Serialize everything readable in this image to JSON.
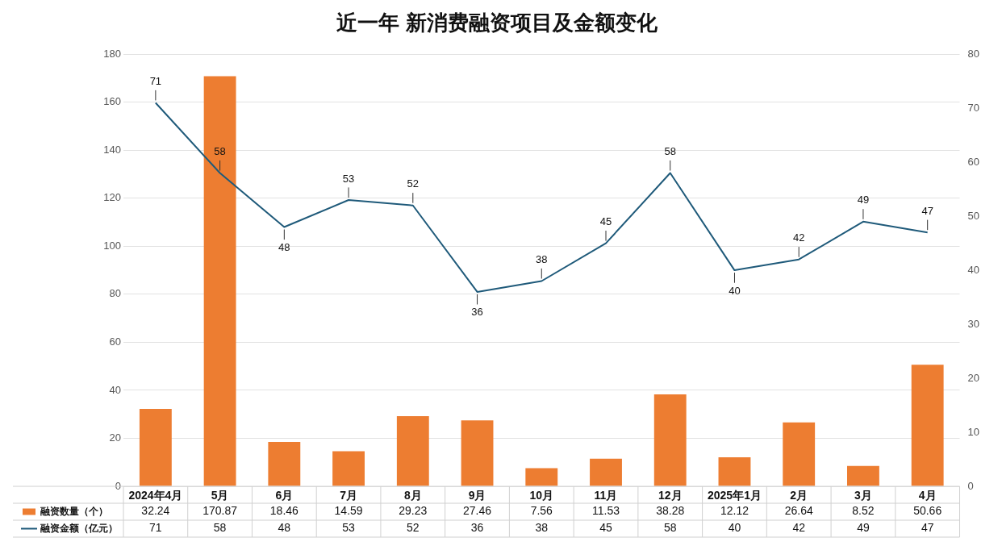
{
  "chart_data": {
    "type": "bar",
    "title": "近一年 新消费融资项目及金额变化",
    "categories": [
      "2024年4月",
      "5月",
      "6月",
      "7月",
      "8月",
      "9月",
      "10月",
      "11月",
      "12月",
      "2025年1月",
      "2月",
      "3月",
      "4月"
    ],
    "series": [
      {
        "name": "融资数量（个）",
        "type": "bar",
        "color": "#ed7d31",
        "values": [
          32.24,
          170.87,
          18.46,
          14.59,
          29.23,
          27.46,
          7.56,
          11.53,
          38.28,
          12.12,
          26.64,
          8.52,
          50.66
        ]
      },
      {
        "name": "融资金额（亿元）",
        "type": "line",
        "axis": "y2",
        "color": "#1f5a7a",
        "values": [
          71,
          58,
          48,
          53,
          52,
          36,
          38,
          45,
          58,
          40,
          42,
          49,
          47
        ]
      }
    ],
    "ylim": [
      0,
      180
    ],
    "yticks": [
      0,
      20,
      40,
      60,
      80,
      100,
      120,
      140,
      160,
      180
    ],
    "y2lim": [
      0,
      80
    ],
    "y2ticks": [
      0,
      10,
      20,
      30,
      40,
      50,
      60,
      70,
      80
    ],
    "annotations": [
      "71",
      "58",
      "48",
      "53",
      "52",
      "36",
      "38",
      "45",
      "58",
      "40",
      "42",
      "49",
      "47"
    ],
    "grid": "y",
    "legend": "bottom",
    "data_labels": true,
    "marker": "none",
    "line_style": "solid"
  }
}
